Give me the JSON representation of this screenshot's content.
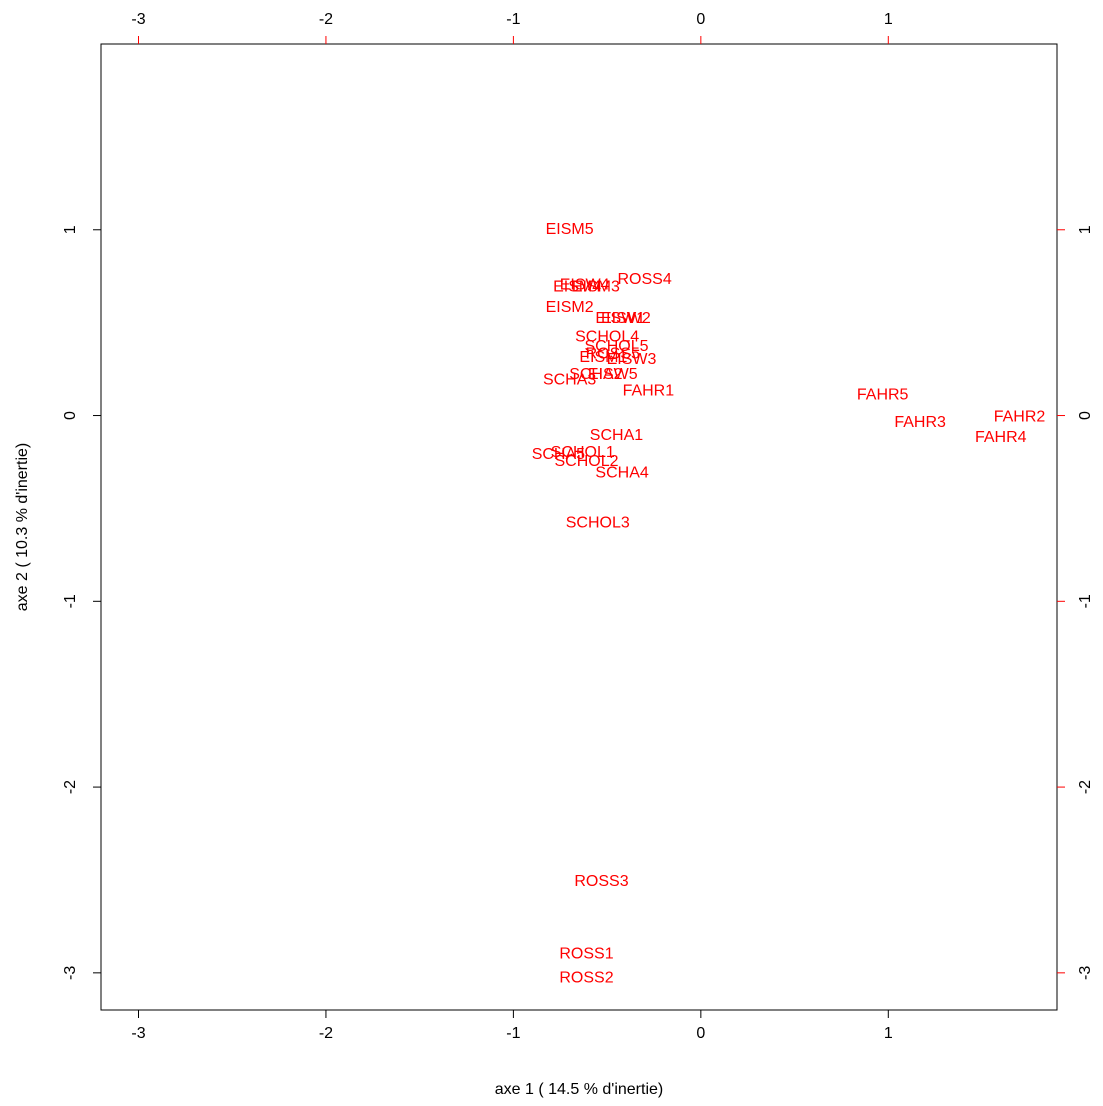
{
  "chart_data": {
    "type": "scatter",
    "xlabel": "axe 1 ( 14.5 % d'inertie)",
    "ylabel": "axe 2 ( 10.3 % d'inertie)",
    "xlim": [
      -3.2,
      1.9
    ],
    "ylim": [
      -3.2,
      2.0
    ],
    "xticks": [
      -3,
      -2,
      -1,
      0,
      1
    ],
    "yticks": [
      -3,
      -2,
      -1,
      0,
      1
    ],
    "xtick_labels": [
      "-3",
      "-2",
      "-1",
      "0",
      "1"
    ],
    "ytick_labels": [
      "-3",
      "-2",
      "-1",
      "0",
      "1"
    ],
    "grid": false,
    "point_color": "#ff0000",
    "axis_color": "#000000",
    "top_right_tick_color": "#ff0000",
    "points": [
      {
        "label": "EISM5",
        "x": -0.7,
        "y": 1.0
      },
      {
        "label": "ROSS4",
        "x": -0.3,
        "y": 0.73
      },
      {
        "label": "EISW4",
        "x": -0.62,
        "y": 0.7
      },
      {
        "label": "EISM4",
        "x": -0.66,
        "y": 0.69
      },
      {
        "label": "EISM3",
        "x": -0.56,
        "y": 0.69
      },
      {
        "label": "EISM2",
        "x": -0.7,
        "y": 0.58
      },
      {
        "label": "EISW1",
        "x": -0.43,
        "y": 0.52
      },
      {
        "label": "EISW2",
        "x": -0.4,
        "y": 0.52
      },
      {
        "label": "SCHOL4",
        "x": -0.5,
        "y": 0.42
      },
      {
        "label": "SCHOL5",
        "x": -0.45,
        "y": 0.37
      },
      {
        "label": "EISM1",
        "x": -0.52,
        "y": 0.31
      },
      {
        "label": "ROSS5",
        "x": -0.47,
        "y": 0.33
      },
      {
        "label": "EISW3",
        "x": -0.37,
        "y": 0.3
      },
      {
        "label": "SCHA2",
        "x": -0.56,
        "y": 0.22
      },
      {
        "label": "EISW5",
        "x": -0.47,
        "y": 0.22
      },
      {
        "label": "SCHA3",
        "x": -0.7,
        "y": 0.19
      },
      {
        "label": "FAHR1",
        "x": -0.28,
        "y": 0.13
      },
      {
        "label": "FAHR5",
        "x": 0.97,
        "y": 0.11
      },
      {
        "label": "FAHR2",
        "x": 1.7,
        "y": -0.01
      },
      {
        "label": "FAHR3",
        "x": 1.17,
        "y": -0.04
      },
      {
        "label": "FAHR4",
        "x": 1.6,
        "y": -0.12
      },
      {
        "label": "SCHA1",
        "x": -0.45,
        "y": -0.11
      },
      {
        "label": "SCHA5",
        "x": -0.76,
        "y": -0.21
      },
      {
        "label": "SCHOL1",
        "x": -0.63,
        "y": -0.2
      },
      {
        "label": "SCHOL2",
        "x": -0.61,
        "y": -0.25
      },
      {
        "label": "SCHA4",
        "x": -0.42,
        "y": -0.31
      },
      {
        "label": "SCHOL3",
        "x": -0.55,
        "y": -0.58
      },
      {
        "label": "ROSS3",
        "x": -0.53,
        "y": -2.51
      },
      {
        "label": "ROSS1",
        "x": -0.61,
        "y": -2.9
      },
      {
        "label": "ROSS2",
        "x": -0.61,
        "y": -3.03
      }
    ]
  }
}
